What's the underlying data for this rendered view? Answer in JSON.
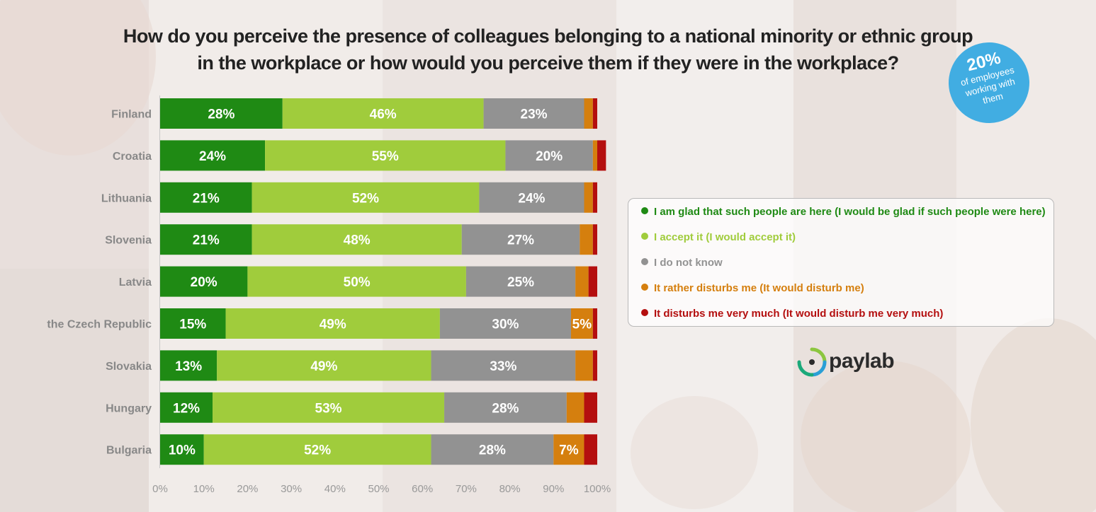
{
  "title_line1": "How do you perceive  the presence of colleagues belonging to a national minority or ethnic group",
  "title_line2": "in the workplace or how would you perceive them if they were in the workplace?",
  "badge": {
    "percent": "20%",
    "text": "of employees working with them",
    "color": "#41ade2"
  },
  "logo": {
    "text": "paylab"
  },
  "colors": [
    "#1f8a14",
    "#a0cc3c",
    "#929292",
    "#d57f0e",
    "#b40f0f"
  ],
  "chart_data": {
    "type": "bar",
    "orientation": "horizontal",
    "stacked": "percent",
    "categories": [
      "Finland",
      "Croatia",
      "Lithuania",
      "Slovenia",
      "Latvia",
      "the Czech Republic",
      "Slovakia",
      "Hungary",
      "Bulgaria"
    ],
    "series": [
      {
        "name": "I am glad that such people are here (I would be glad if such people were here)",
        "color": "#1f8a14",
        "values": [
          28,
          24,
          21,
          21,
          20,
          15,
          13,
          12,
          10
        ]
      },
      {
        "name": "I accept it (I would accept it)",
        "color": "#a0cc3c",
        "values": [
          46,
          55,
          52,
          48,
          50,
          49,
          49,
          53,
          52
        ]
      },
      {
        "name": "I do not know",
        "color": "#929292",
        "values": [
          23,
          20,
          24,
          27,
          25,
          30,
          33,
          28,
          28
        ]
      },
      {
        "name": "It rather disturbs me (It would disturb me)",
        "color": "#d57f0e",
        "values": [
          2,
          1,
          2,
          3,
          3,
          5,
          4,
          4,
          7
        ]
      },
      {
        "name": "It disturbs me very much (It would disturb me very much)",
        "color": "#b40f0f",
        "values": [
          1,
          2,
          1,
          1,
          2,
          1,
          1,
          3,
          3
        ]
      }
    ],
    "xlim": [
      0,
      100
    ],
    "x_ticks": [
      "0%",
      "10%",
      "20%",
      "30%",
      "40%",
      "50%",
      "60%",
      "70%",
      "80%",
      "90%",
      "100%"
    ],
    "label_min_value": 5,
    "legend_position": "right",
    "grid": false
  }
}
